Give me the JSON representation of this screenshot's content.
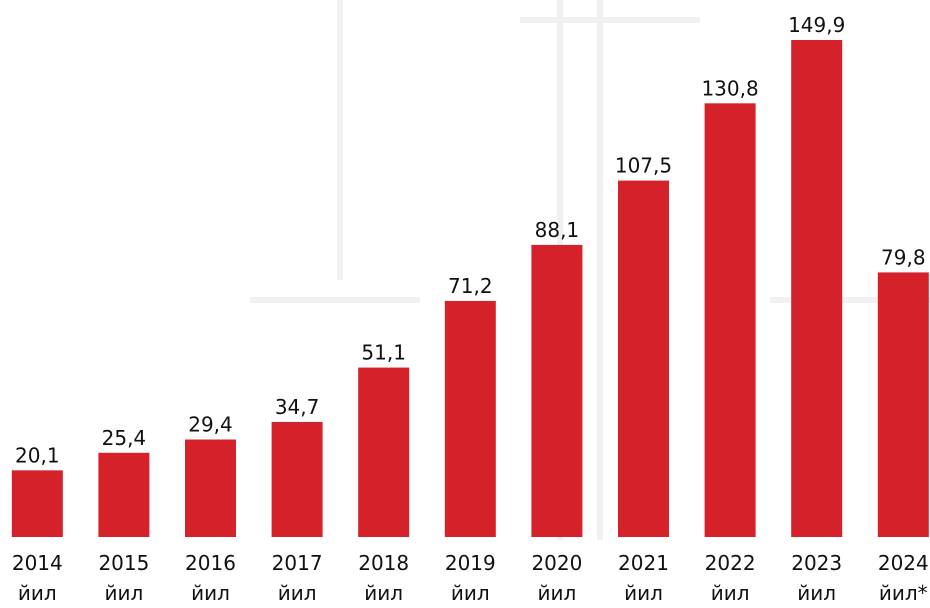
{
  "chart_data": {
    "type": "bar",
    "categories": [
      "2014 йил",
      "2015 йил",
      "2016 йил",
      "2017 йил",
      "2018 йил",
      "2019 йил",
      "2020 йил",
      "2021 йил",
      "2022 йил",
      "2023 йил",
      "2024 йил*"
    ],
    "values": [
      20.1,
      25.4,
      29.4,
      34.7,
      51.1,
      71.2,
      88.1,
      107.5,
      130.8,
      149.9,
      79.8
    ],
    "value_labels": [
      "20,1",
      "25,4",
      "29,4",
      "34,7",
      "51,1",
      "71,2",
      "88,1",
      "107,5",
      "130,8",
      "149,9",
      "79,8"
    ],
    "color": "#d4212a"
  }
}
